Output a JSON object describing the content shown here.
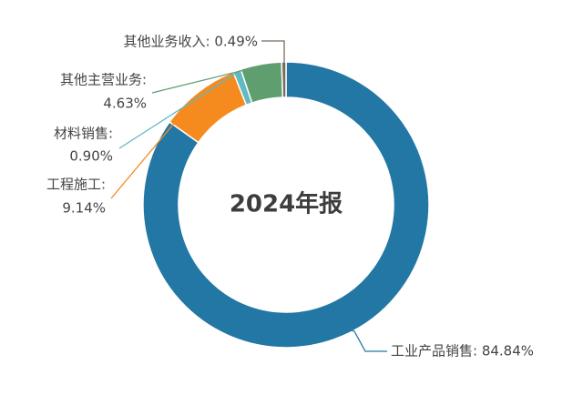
{
  "chart_data": {
    "type": "pie",
    "title": "",
    "center_label": "2024年报",
    "slices": [
      {
        "label": "工业产品销售",
        "value": 84.84,
        "value_text": "84.84%",
        "color": "#2377a4"
      },
      {
        "label": "工程施工",
        "value": 9.14,
        "value_text": "9.14%",
        "color": "#f58b1f"
      },
      {
        "label": "材料销售",
        "value": 0.9,
        "value_text": "0.90%",
        "color": "#62b9c3"
      },
      {
        "label": "其他主营业务",
        "value": 4.63,
        "value_text": "4.63%",
        "color": "#5f9e6e"
      },
      {
        "label": "其他业务收入",
        "value": 0.49,
        "value_text": "0.49%",
        "color": "#7b6b5c"
      }
    ]
  }
}
